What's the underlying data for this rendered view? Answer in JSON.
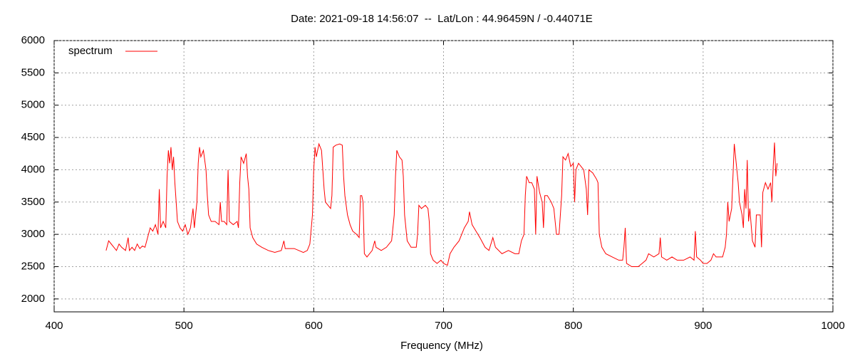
{
  "chart_data": {
    "type": "line",
    "title": "Date: 2021-09-18 14:56:07  --  Lat/Lon : 44.96459N / -0.44071E",
    "x_label": "Frequency (MHz)",
    "xlim": [
      400,
      1000
    ],
    "xticks": [
      400,
      500,
      600,
      700,
      800,
      900,
      1000
    ],
    "ylim": [
      1800,
      6000
    ],
    "yticks": [
      2000,
      2500,
      3000,
      3500,
      4000,
      4500,
      5000,
      5500,
      6000
    ],
    "grid": true,
    "legend": "top left",
    "x": [
      440,
      442,
      444,
      446,
      448,
      450,
      452,
      455,
      457,
      458,
      460,
      462,
      464,
      466,
      468,
      470,
      472,
      474,
      476,
      478,
      480,
      481,
      482,
      484,
      486,
      487,
      488,
      489,
      490,
      491,
      492,
      493,
      494,
      495,
      497,
      499,
      501,
      503,
      505,
      507,
      508,
      510,
      511,
      512,
      513,
      515,
      517,
      518,
      519,
      521,
      524,
      527,
      528,
      529,
      531,
      533,
      534,
      535,
      538,
      541,
      542,
      543,
      544,
      546,
      548,
      549,
      550,
      551,
      553,
      556,
      560,
      565,
      570,
      575,
      577,
      578,
      585,
      592,
      595,
      597,
      599,
      600,
      601,
      602,
      604,
      606,
      607,
      608,
      609,
      611,
      613,
      614,
      615,
      617,
      620,
      622,
      623,
      624,
      626,
      628,
      630,
      633,
      635,
      636,
      637,
      638,
      639,
      641,
      645,
      647,
      648,
      652,
      656,
      660,
      662,
      663,
      664,
      666,
      668,
      669,
      670,
      672,
      675,
      679,
      680,
      681,
      683,
      686,
      688,
      689,
      690,
      692,
      695,
      698,
      700,
      703,
      705,
      708,
      712,
      716,
      719,
      720,
      722,
      725,
      728,
      732,
      735,
      738,
      740,
      745,
      750,
      755,
      758,
      760,
      762,
      763,
      764,
      766,
      768,
      770,
      771,
      772,
      774,
      776,
      777,
      778,
      780,
      783,
      785,
      787,
      789,
      791,
      792,
      794,
      796,
      798,
      800,
      801,
      802,
      804,
      806,
      808,
      810,
      811,
      812,
      815,
      818,
      819,
      820,
      822,
      825,
      830,
      835,
      838,
      839,
      840,
      841,
      845,
      850,
      853,
      856,
      858,
      862,
      866,
      867,
      868,
      872,
      876,
      880,
      885,
      890,
      893,
      894,
      895,
      898,
      900,
      903,
      906,
      908,
      910,
      915,
      917,
      918,
      919,
      920,
      922,
      923,
      924,
      926,
      927,
      928,
      930,
      931,
      932,
      933,
      934,
      935,
      936,
      938,
      940,
      941,
      942,
      944,
      945,
      946,
      948,
      950,
      952,
      953,
      954,
      955,
      956,
      957
    ],
    "series": [
      {
        "name": "spectrum",
        "color": "#ff0000",
        "values": [
          2750,
          2900,
          2850,
          2800,
          2750,
          2850,
          2800,
          2750,
          2950,
          2750,
          2800,
          2750,
          2850,
          2780,
          2820,
          2800,
          2950,
          3100,
          3050,
          3150,
          3000,
          3700,
          3100,
          3200,
          3100,
          3900,
          4300,
          4100,
          4350,
          4000,
          4200,
          3800,
          3500,
          3200,
          3100,
          3050,
          3150,
          3000,
          3100,
          3400,
          3100,
          3500,
          4100,
          4350,
          4200,
          4300,
          4000,
          3600,
          3300,
          3200,
          3200,
          3150,
          3500,
          3200,
          3200,
          3150,
          4000,
          3200,
          3150,
          3200,
          3100,
          3800,
          4200,
          4100,
          4250,
          3900,
          3700,
          3100,
          2950,
          2850,
          2800,
          2750,
          2720,
          2750,
          2900,
          2780,
          2780,
          2720,
          2750,
          2850,
          3300,
          4000,
          4350,
          4200,
          4400,
          4300,
          4000,
          3700,
          3500,
          3450,
          3400,
          3600,
          4350,
          4380,
          4400,
          4380,
          3900,
          3600,
          3300,
          3150,
          3050,
          3000,
          2950,
          3600,
          3600,
          3500,
          2700,
          2650,
          2750,
          2900,
          2800,
          2750,
          2800,
          2900,
          3300,
          3900,
          4300,
          4200,
          4150,
          3900,
          3300,
          2900,
          2800,
          2800,
          3000,
          3450,
          3400,
          3450,
          3400,
          3200,
          2700,
          2600,
          2550,
          2600,
          2550,
          2520,
          2700,
          2800,
          2900,
          3100,
          3200,
          3350,
          3150,
          3050,
          2950,
          2800,
          2750,
          2950,
          2800,
          2700,
          2750,
          2700,
          2700,
          2900,
          3000,
          3600,
          3900,
          3800,
          3800,
          3700,
          3000,
          3900,
          3650,
          3500,
          3100,
          3600,
          3600,
          3500,
          3400,
          3000,
          3000,
          3600,
          4200,
          4150,
          4250,
          4050,
          4100,
          3500,
          4000,
          4100,
          4050,
          4000,
          3700,
          3300,
          4000,
          3950,
          3850,
          3800,
          3000,
          2800,
          2700,
          2650,
          2600,
          2600,
          2800,
          3100,
          2550,
          2500,
          2500,
          2550,
          2600,
          2700,
          2650,
          2700,
          2950,
          2650,
          2600,
          2650,
          2600,
          2600,
          2650,
          2600,
          3050,
          2650,
          2600,
          2550,
          2550,
          2600,
          2700,
          2650,
          2650,
          2800,
          3000,
          3500,
          3200,
          3400,
          3900,
          4400,
          4000,
          3800,
          3500,
          3300,
          3100,
          3700,
          3400,
          4150,
          3200,
          3400,
          2900,
          2800,
          3300,
          3300,
          3300,
          2800,
          3650,
          3800,
          3700,
          3800,
          3500,
          4050,
          4420,
          3900,
          4100
        ]
      }
    ]
  }
}
